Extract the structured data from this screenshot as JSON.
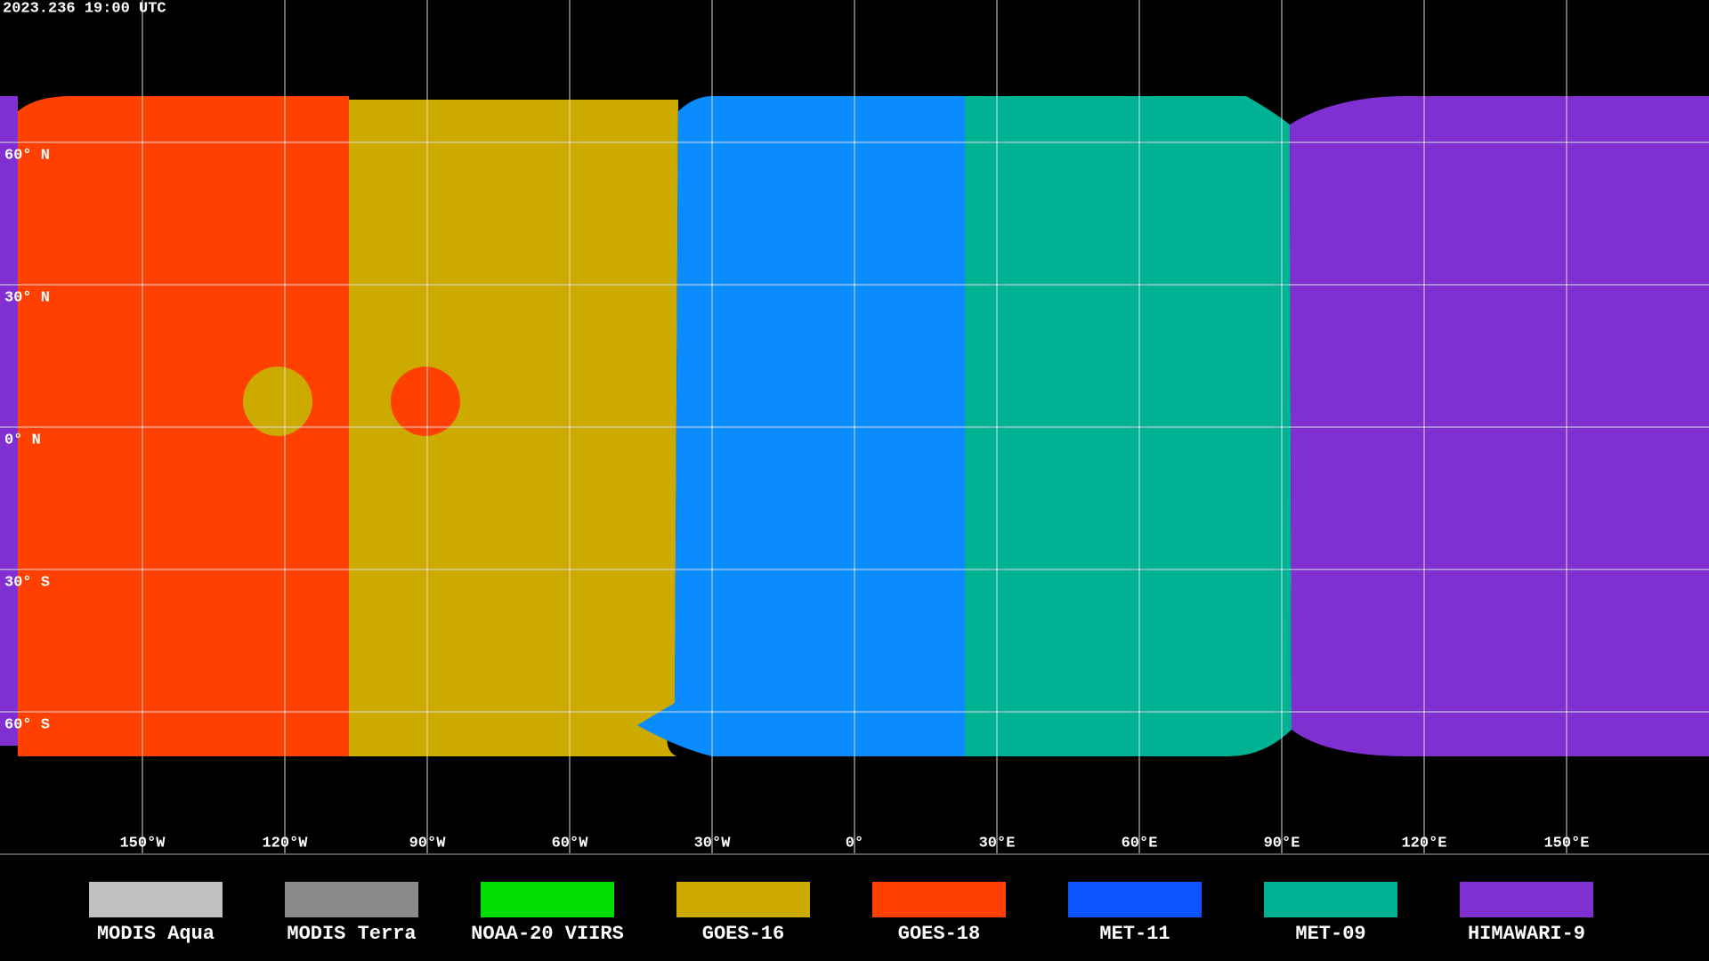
{
  "header": {
    "timestamp": "2023.236 19:00 UTC"
  },
  "map": {
    "lon_ticks": [
      {
        "value": -150,
        "label": "150°W"
      },
      {
        "value": -120,
        "label": "120°W"
      },
      {
        "value": -90,
        "label": "90°W"
      },
      {
        "value": -60,
        "label": "60°W"
      },
      {
        "value": -30,
        "label": "30°W"
      },
      {
        "value": 0,
        "label": "0°"
      },
      {
        "value": 30,
        "label": "30°E"
      },
      {
        "value": 60,
        "label": "60°E"
      },
      {
        "value": 90,
        "label": "90°E"
      },
      {
        "value": 120,
        "label": "120°E"
      },
      {
        "value": 150,
        "label": "150°E"
      }
    ],
    "lat_ticks": [
      {
        "value": 60,
        "label": "60° N"
      },
      {
        "value": 30,
        "label": "30° N"
      },
      {
        "value": 0,
        "label": "0° N"
      },
      {
        "value": -30,
        "label": "30° S"
      },
      {
        "value": -60,
        "label": "60° S"
      }
    ]
  },
  "legend": {
    "items": [
      {
        "label": "MODIS Aqua",
        "color": "#c0c0c0"
      },
      {
        "label": "MODIS Terra",
        "color": "#8a8a8a"
      },
      {
        "label": "NOAA-20 VIIRS",
        "color": "#00dd00"
      },
      {
        "label": "GOES-16",
        "color": "#ccaa00"
      },
      {
        "label": "GOES-18",
        "color": "#ff4000"
      },
      {
        "label": "MET-11",
        "color": "#0a55ff"
      },
      {
        "label": "MET-09",
        "color": "#00b294"
      },
      {
        "label": "HIMAWARI-9",
        "color": "#8030d0"
      }
    ]
  }
}
